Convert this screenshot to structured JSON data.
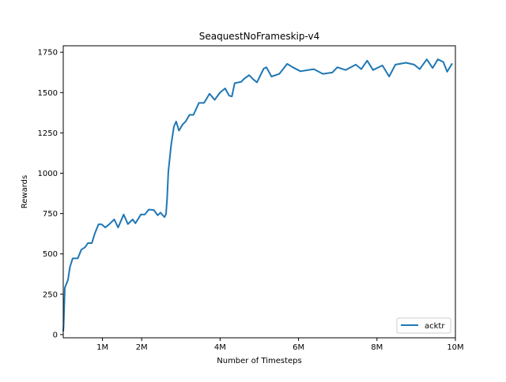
{
  "chart_data": {
    "type": "line",
    "title": "SeaquestNoFrameskip-v4",
    "xlabel": "Number of Timesteps",
    "ylabel": "Rewards",
    "xlim": [
      0,
      10000000
    ],
    "ylim": [
      -20,
      1790
    ],
    "xticks": [
      {
        "value": 1000000,
        "label": "1M"
      },
      {
        "value": 2000000,
        "label": "2M"
      },
      {
        "value": 4000000,
        "label": "4M"
      },
      {
        "value": 6000000,
        "label": "6M"
      },
      {
        "value": 8000000,
        "label": "8M"
      },
      {
        "value": 10000000,
        "label": "10M"
      }
    ],
    "yticks": [
      {
        "value": 0,
        "label": "0"
      },
      {
        "value": 250,
        "label": "250"
      },
      {
        "value": 500,
        "label": "500"
      },
      {
        "value": 750,
        "label": "750"
      },
      {
        "value": 1000,
        "label": "1000"
      },
      {
        "value": 1250,
        "label": "1250"
      },
      {
        "value": 1500,
        "label": "1500"
      },
      {
        "value": 1750,
        "label": "1750"
      }
    ],
    "grid": false,
    "legend_position": "lower-right",
    "series": [
      {
        "name": "acktr",
        "color": "#1f77b4",
        "x": [
          0,
          10000,
          40000,
          120000,
          170000,
          240000,
          370000,
          460000,
          560000,
          630000,
          730000,
          800000,
          900000,
          980000,
          1070000,
          1170000,
          1300000,
          1400000,
          1540000,
          1650000,
          1770000,
          1840000,
          1980000,
          2080000,
          2180000,
          2310000,
          2410000,
          2480000,
          2580000,
          2620000,
          2650000,
          2680000,
          2750000,
          2820000,
          2880000,
          2950000,
          3050000,
          3120000,
          3220000,
          3320000,
          3460000,
          3590000,
          3730000,
          3860000,
          4000000,
          4130000,
          4230000,
          4300000,
          4370000,
          4540000,
          4600000,
          4740000,
          4840000,
          4940000,
          5110000,
          5180000,
          5310000,
          5510000,
          5710000,
          5850000,
          6050000,
          6390000,
          6620000,
          6860000,
          6990000,
          7200000,
          7460000,
          7600000,
          7750000,
          7900000,
          8140000,
          8310000,
          8470000,
          8740000,
          8950000,
          9090000,
          9270000,
          9420000,
          9550000,
          9690000,
          9790000,
          9920000
        ],
        "y": [
          20,
          59,
          290,
          339,
          418,
          472,
          472,
          526,
          542,
          567,
          567,
          624,
          683,
          683,
          664,
          683,
          714,
          664,
          744,
          685,
          714,
          690,
          744,
          744,
          775,
          772,
          739,
          756,
          728,
          747,
          846,
          1009,
          1173,
          1288,
          1321,
          1264,
          1304,
          1321,
          1362,
          1362,
          1436,
          1436,
          1493,
          1455,
          1501,
          1526,
          1481,
          1476,
          1558,
          1567,
          1583,
          1608,
          1583,
          1563,
          1648,
          1657,
          1599,
          1616,
          1678,
          1657,
          1632,
          1645,
          1616,
          1624,
          1657,
          1640,
          1673,
          1645,
          1698,
          1640,
          1668,
          1599,
          1673,
          1685,
          1673,
          1645,
          1706,
          1652,
          1706,
          1690,
          1629,
          1681
        ]
      }
    ]
  }
}
